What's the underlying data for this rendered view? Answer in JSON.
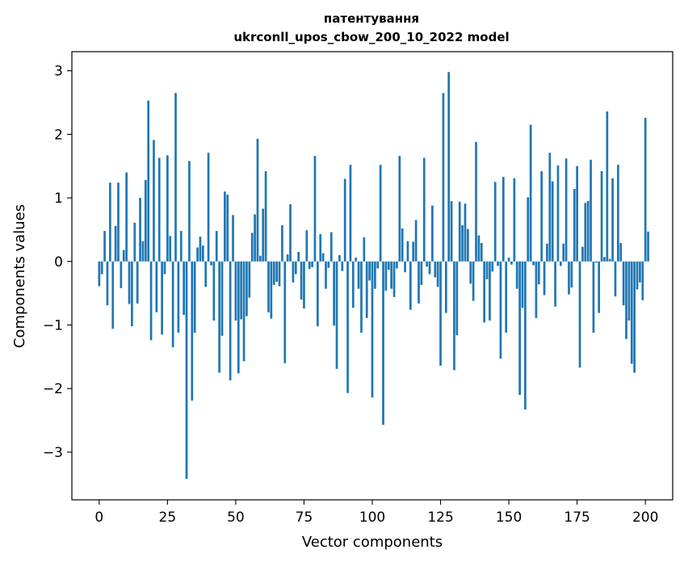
{
  "chart_data": {
    "type": "bar",
    "title_line1": "патентування",
    "title_line2": "ukrconll_upos_cbow_200_10_2022 model",
    "xlabel": "Vector components",
    "ylabel": "Components values",
    "xlim": [
      -10,
      210
    ],
    "ylim": [
      -3.75,
      3.3
    ],
    "x_ticks": [
      0,
      25,
      50,
      75,
      100,
      125,
      150,
      175,
      200
    ],
    "y_ticks": [
      -3,
      -2,
      -1,
      0,
      1,
      2,
      3
    ],
    "x_tick_labels": [
      "0",
      "25",
      "50",
      "75",
      "100",
      "125",
      "150",
      "175",
      "200"
    ],
    "y_tick_labels": [
      "−3",
      "−2",
      "−1",
      "0",
      "1",
      "2",
      "3"
    ],
    "bar_color": "#1f77b4",
    "values": [
      -0.39,
      -0.2,
      0.48,
      -0.69,
      1.24,
      -1.06,
      0.56,
      1.24,
      -0.42,
      0.18,
      1.4,
      -0.67,
      -1.02,
      0.61,
      -0.66,
      1.0,
      0.32,
      1.28,
      2.53,
      -1.24,
      1.91,
      -0.8,
      1.63,
      -1.15,
      -0.2,
      1.67,
      0.4,
      -1.35,
      2.65,
      -1.12,
      0.48,
      -0.84,
      -3.42,
      1.58,
      -2.19,
      -1.12,
      0.22,
      0.39,
      0.25,
      -0.4,
      1.71,
      -0.06,
      -0.93,
      0.48,
      -1.75,
      -1.17,
      1.1,
      1.05,
      -1.87,
      0.73,
      -0.93,
      -1.76,
      -0.91,
      -1.57,
      -0.86,
      -0.57,
      0.45,
      0.74,
      1.93,
      0.09,
      0.83,
      1.42,
      -0.8,
      -0.9,
      -0.37,
      -0.32,
      -0.39,
      0.57,
      -1.6,
      0.11,
      0.9,
      -0.33,
      -0.2,
      0.15,
      -0.6,
      -0.74,
      0.49,
      -0.12,
      -0.09,
      1.66,
      -1.02,
      0.43,
      0.13,
      -0.43,
      -0.1,
      0.46,
      -1.01,
      -1.69,
      0.1,
      -0.15,
      1.3,
      -2.07,
      1.52,
      -0.73,
      0.06,
      -0.43,
      -1.12,
      0.38,
      -0.89,
      -0.3,
      -2.14,
      -0.43,
      -0.11,
      1.52,
      -2.57,
      -0.46,
      -0.13,
      -0.43,
      -0.56,
      -0.11,
      1.66,
      0.52,
      -0.17,
      0.32,
      -0.76,
      0.31,
      0.65,
      -0.66,
      -0.37,
      1.63,
      -0.08,
      -0.2,
      0.88,
      -0.25,
      -0.4,
      -1.64,
      2.65,
      -0.81,
      2.98,
      0.95,
      -1.71,
      -1.16,
      0.94,
      0.57,
      0.91,
      0.51,
      -0.35,
      -0.62,
      1.88,
      0.41,
      0.29,
      -0.96,
      -0.28,
      -0.93,
      -0.16,
      1.25,
      -0.07,
      -1.53,
      1.33,
      -1.12,
      0.06,
      -0.05,
      1.31,
      -0.43,
      -2.1,
      -0.73,
      -2.33,
      1.01,
      2.15,
      -0.06,
      -0.89,
      -0.36,
      1.42,
      -0.53,
      0.28,
      1.71,
      1.26,
      -0.71,
      1.51,
      -0.07,
      0.28,
      1.62,
      -0.52,
      -0.41,
      1.14,
      1.5,
      -1.67,
      0.23,
      0.92,
      0.95,
      1.6,
      -1.12,
      -0.02,
      -0.81,
      1.42,
      0.07,
      2.36,
      0.04,
      1.31,
      -0.55,
      1.52,
      0.29,
      -0.69,
      -1.22,
      -0.93,
      -1.61,
      -1.75,
      -0.44,
      -0.33,
      -0.61,
      2.26,
      0.47
    ]
  }
}
